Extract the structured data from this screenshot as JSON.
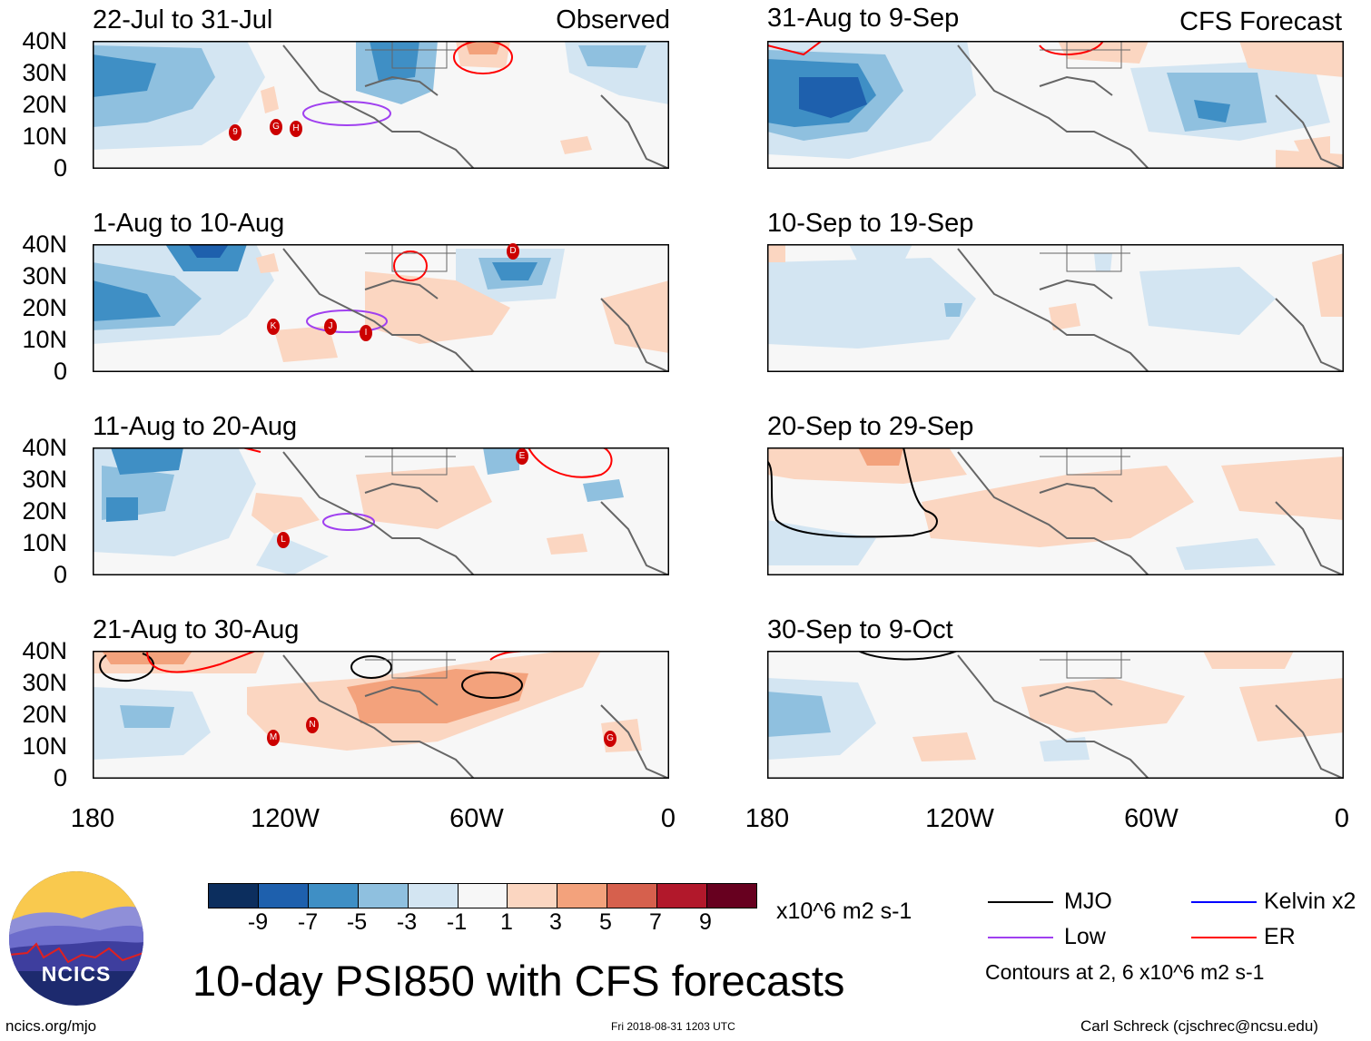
{
  "title": "10-day PSI850 with CFS forecasts",
  "columns": {
    "observed_tag": "Observed",
    "forecast_tag": "CFS Forecast"
  },
  "panels": {
    "observed": [
      {
        "period": "22-Jul to 31-Jul",
        "storms": [
          "9",
          "G",
          "H"
        ]
      },
      {
        "period": "1-Aug to 10-Aug",
        "storms": [
          "K",
          "J",
          "I",
          "D"
        ]
      },
      {
        "period": "11-Aug to 20-Aug",
        "storms": [
          "L",
          "E"
        ]
      },
      {
        "period": "21-Aug to 30-Aug",
        "storms": [
          "M",
          "N",
          "G"
        ]
      }
    ],
    "forecast": [
      {
        "period": "31-Aug to 9-Sep"
      },
      {
        "period": "10-Sep to 19-Sep"
      },
      {
        "period": "20-Sep to 29-Sep"
      },
      {
        "period": "30-Sep to 9-Oct"
      }
    ]
  },
  "axes": {
    "y_ticks": [
      "40N",
      "30N",
      "20N",
      "10N",
      "0"
    ],
    "x_ticks": [
      "180",
      "120W",
      "60W",
      "0"
    ]
  },
  "colorbar": {
    "labels": [
      "-9",
      "-7",
      "-5",
      "-3",
      "-1",
      "1",
      "3",
      "5",
      "7",
      "9"
    ],
    "colors": [
      "#0c2e5e",
      "#1e60ad",
      "#3f8fc5",
      "#8fc0df",
      "#d3e5f2",
      "#f7f7f7",
      "#fbd6c1",
      "#f3a27c",
      "#d6604d",
      "#b2182b",
      "#67001f"
    ],
    "units": "x10^6 m2 s-1"
  },
  "legend": {
    "items": [
      {
        "label": "MJO",
        "color": "#000000"
      },
      {
        "label": "Kelvin x2",
        "color": "#0000ff"
      },
      {
        "label": "Low",
        "color": "#a040f0"
      },
      {
        "label": "ER",
        "color": "#ff0000"
      }
    ],
    "note": "Contours at 2, 6 x10^6 m2 s-1"
  },
  "logo": {
    "text": "NCICS"
  },
  "footer": {
    "left": "ncics.org/mjo",
    "center": "Fri 2018-08-31 1203 UTC",
    "right": "Carl Schreck (cjschrec@ncsu.edu)"
  }
}
